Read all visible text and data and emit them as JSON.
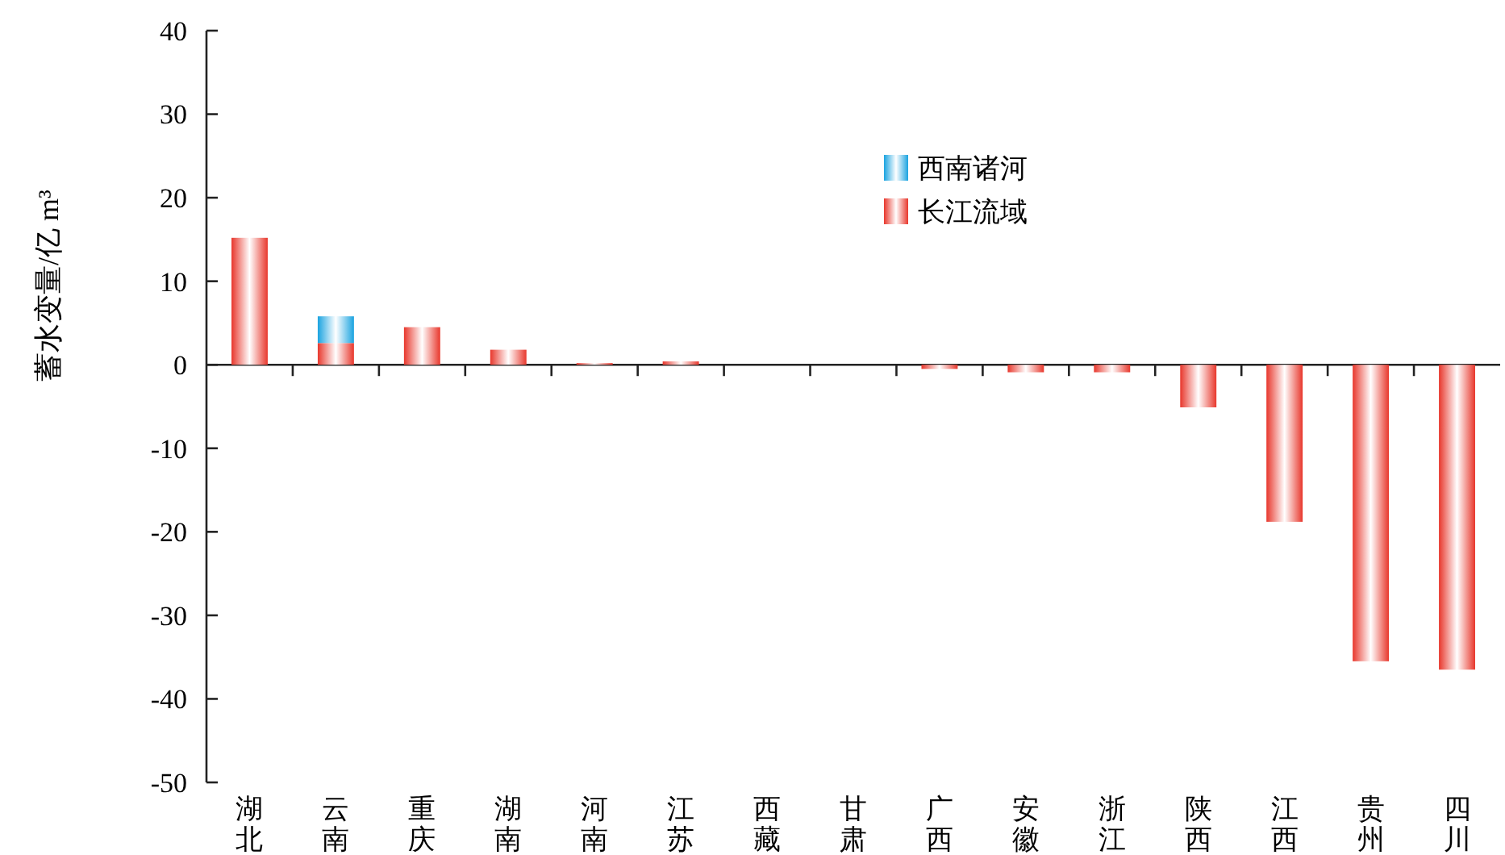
{
  "chart_data": {
    "type": "bar",
    "ylabel": "蓄水变量/亿 m³",
    "categories": [
      "湖北",
      "云南",
      "重庆",
      "湖南",
      "河南",
      "江苏",
      "西藏",
      "甘肃",
      "广西",
      "安徽",
      "浙江",
      "陕西",
      "江西",
      "贵州",
      "四川"
    ],
    "series": [
      {
        "name": "长江流域",
        "color": "#e8372c",
        "values": [
          15.2,
          2.6,
          4.5,
          1.8,
          0.2,
          0.4,
          0,
          0,
          -0.5,
          -0.9,
          -0.9,
          -5.1,
          -18.8,
          -35.5,
          -36.5
        ]
      },
      {
        "name": "西南诸河",
        "color": "#1aa3e0",
        "values": [
          0,
          3.2,
          0,
          0,
          0,
          0,
          0,
          0,
          0,
          0,
          0,
          0,
          0,
          0,
          0
        ]
      }
    ],
    "stacked": true,
    "ylim": [
      -50,
      40
    ],
    "yticks": [
      -50,
      -40,
      -30,
      -20,
      -10,
      0,
      10,
      20,
      30,
      40
    ],
    "legend": "top"
  }
}
